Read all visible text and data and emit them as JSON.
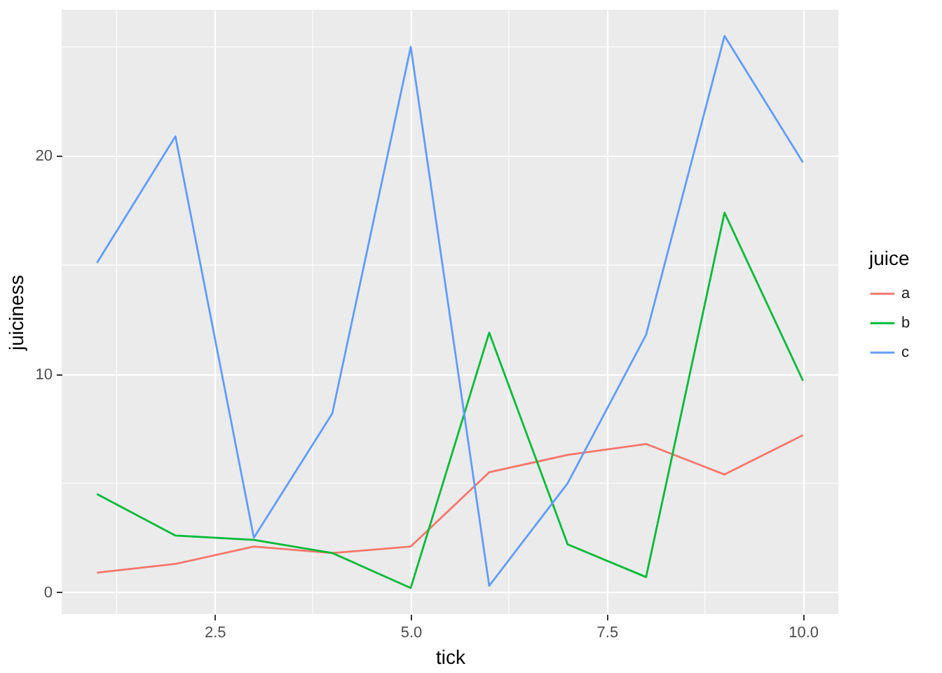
{
  "chart_data": {
    "type": "line",
    "xlabel": "tick",
    "ylabel": "juiciness",
    "legend_title": "juice",
    "x": [
      1,
      2,
      3,
      4,
      5,
      6,
      7,
      8,
      9,
      10
    ],
    "series": [
      {
        "name": "a",
        "color": "#f8766d",
        "values": [
          0.9,
          1.3,
          2.1,
          1.8,
          2.1,
          5.5,
          6.3,
          6.8,
          5.4,
          7.2
        ]
      },
      {
        "name": "b",
        "color": "#00ba38",
        "values": [
          4.5,
          2.6,
          2.4,
          1.8,
          0.2,
          11.9,
          2.2,
          0.7,
          17.4,
          9.7
        ]
      },
      {
        "name": "c",
        "color": "#619cff",
        "values": [
          15.1,
          20.9,
          2.5,
          8.2,
          25.0,
          0.3,
          5.0,
          11.8,
          25.5,
          19.7
        ]
      }
    ],
    "xlim": [
      0.55,
      10.45
    ],
    "ylim": [
      -1.0,
      26.7
    ],
    "xticks": [
      2.5,
      {
        "value": 5,
        "label": "5.0"
      },
      7.5,
      {
        "value": 10,
        "label": "10.0"
      }
    ],
    "yticks": [
      0,
      10,
      20
    ],
    "grid": true,
    "legend": "right",
    "line_style": "solid"
  }
}
